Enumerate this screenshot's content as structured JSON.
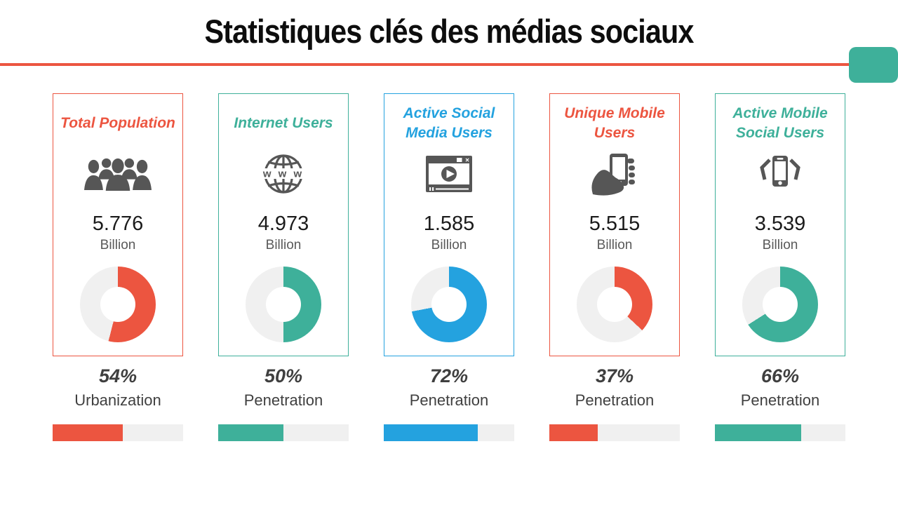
{
  "header": {
    "title": "Statistiques clés des médias sociaux",
    "divider_color": "#EC5540",
    "tab_color": "#3EB09A"
  },
  "colors": {
    "red": "#EC5540",
    "teal": "#3EB09A",
    "blue": "#24A2DF",
    "track": "#F0F0F0",
    "icon_gray": "#565656",
    "title_black": "#0d0d0d",
    "percent_gray": "#3f3f3f"
  },
  "cards": [
    {
      "title": "Total Population",
      "accent": "#EC5540",
      "icon": "people-group-icon",
      "value": "5.776",
      "unit": "Billion",
      "percent": 54,
      "percent_label": "54%",
      "metric": "Urbanization"
    },
    {
      "title": "Internet Users",
      "accent": "#3EB09A",
      "icon": "globe-www-icon",
      "value": "4.973",
      "unit": "Billion",
      "percent": 50,
      "percent_label": "50%",
      "metric": "Penetration"
    },
    {
      "title": "Active Social Media Users",
      "accent": "#24A2DF",
      "icon": "video-player-icon",
      "value": "1.585",
      "unit": "Billion",
      "percent": 72,
      "percent_label": "72%",
      "metric": "Penetration"
    },
    {
      "title": "Unique Mobile Users",
      "accent": "#EC5540",
      "icon": "hand-phone-icon",
      "value": "5.515",
      "unit": "Billion",
      "percent": 37,
      "percent_label": "37%",
      "metric": "Penetration"
    },
    {
      "title": "Active Mobile Social Users",
      "accent": "#3EB09A",
      "icon": "phone-shake-icon",
      "value": "3.539",
      "unit": "Billion",
      "percent": 66,
      "percent_label": "66%",
      "metric": "Penetration"
    }
  ],
  "chart_data": [
    {
      "type": "pie",
      "title": "Total Population",
      "subtitle": "5.776 Billion",
      "labels": [
        "Urbanization",
        "Remainder"
      ],
      "values": [
        54,
        46
      ],
      "colors": [
        "#EC5540",
        "#F0F0F0"
      ],
      "donut_hole_ratio": 0.46,
      "start_angle": "12 o'clock, clockwise",
      "bar_percent": 54
    },
    {
      "type": "pie",
      "title": "Internet Users",
      "subtitle": "4.973 Billion",
      "labels": [
        "Penetration",
        "Remainder"
      ],
      "values": [
        50,
        50
      ],
      "colors": [
        "#3EB09A",
        "#F0F0F0"
      ],
      "donut_hole_ratio": 0.46,
      "start_angle": "12 o'clock, clockwise",
      "bar_percent": 50
    },
    {
      "type": "pie",
      "title": "Active Social Media Users",
      "subtitle": "1.585 Billion",
      "labels": [
        "Penetration",
        "Remainder"
      ],
      "values": [
        72,
        28
      ],
      "colors": [
        "#24A2DF",
        "#F0F0F0"
      ],
      "donut_hole_ratio": 0.46,
      "start_angle": "12 o'clock, clockwise",
      "bar_percent": 72
    },
    {
      "type": "pie",
      "title": "Unique Mobile Users",
      "subtitle": "5.515 Billion",
      "labels": [
        "Penetration",
        "Remainder"
      ],
      "values": [
        37,
        63
      ],
      "colors": [
        "#EC5540",
        "#F0F0F0"
      ],
      "donut_hole_ratio": 0.46,
      "start_angle": "12 o'clock, clockwise",
      "bar_percent": 37
    },
    {
      "type": "pie",
      "title": "Active Mobile Social Users",
      "subtitle": "3.539 Billion",
      "labels": [
        "Penetration",
        "Remainder"
      ],
      "values": [
        66,
        34
      ],
      "colors": [
        "#3EB09A",
        "#F0F0F0"
      ],
      "donut_hole_ratio": 0.46,
      "start_angle": "12 o'clock, clockwise",
      "bar_percent": 66
    }
  ]
}
